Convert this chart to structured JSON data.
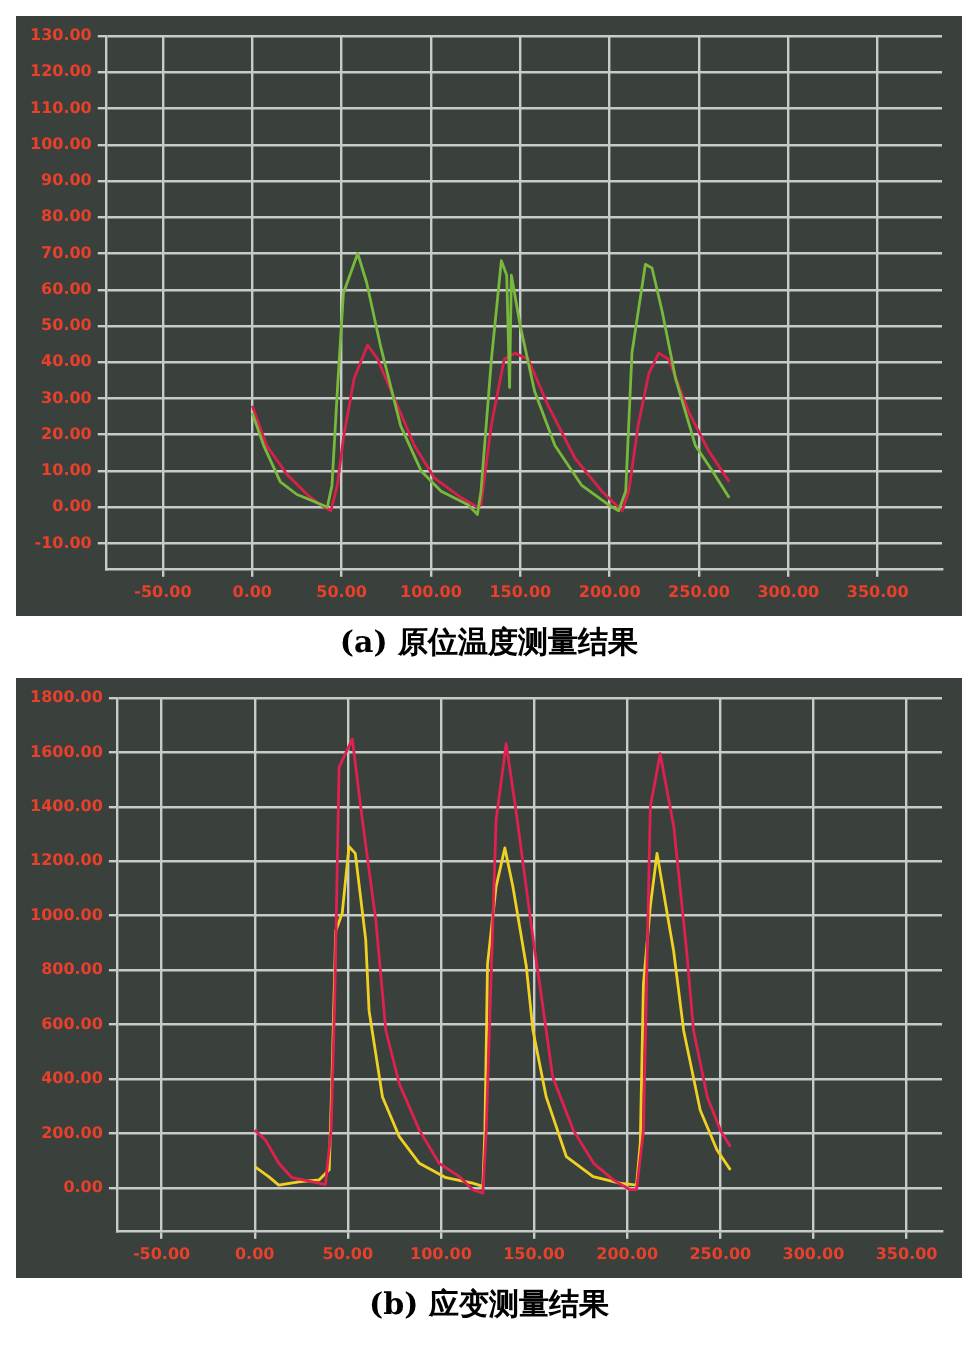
{
  "chart_data": [
    {
      "type": "line",
      "title": "(a) 原位温度测量结果",
      "xlim": [
        -82,
        386
      ],
      "ylim": [
        -17,
        130
      ],
      "xticks": [
        {
          "value": -50,
          "label": "-50.00"
        },
        {
          "value": 0,
          "label": "0.00"
        },
        {
          "value": 50,
          "label": "50.00"
        },
        {
          "value": 100,
          "label": "100.00"
        },
        {
          "value": 150,
          "label": "150.00"
        },
        {
          "value": 200,
          "label": "200.00"
        },
        {
          "value": 250,
          "label": "250.00"
        },
        {
          "value": 300,
          "label": "300.00"
        },
        {
          "value": 350,
          "label": "350.00"
        }
      ],
      "yticks": [
        {
          "value": -10,
          "label": "-10.00"
        },
        {
          "value": 0,
          "label": "0.00"
        },
        {
          "value": 10,
          "label": "10.00"
        },
        {
          "value": 20,
          "label": "20.00"
        },
        {
          "value": 30,
          "label": "30.00"
        },
        {
          "value": 40,
          "label": "40.00"
        },
        {
          "value": 50,
          "label": "50.00"
        },
        {
          "value": 60,
          "label": "60.00"
        },
        {
          "value": 70,
          "label": "70.00"
        },
        {
          "value": 80,
          "label": "80.00"
        },
        {
          "value": 90,
          "label": "90.00"
        },
        {
          "value": 100,
          "label": "100.00"
        },
        {
          "value": 110,
          "label": "110.00"
        },
        {
          "value": 120,
          "label": "120.00"
        },
        {
          "value": 130,
          "label": "130.00"
        }
      ],
      "grid": true,
      "legend": false,
      "series": [
        {
          "color": "#78b83a",
          "x": [
            0,
            6.4,
            15.7,
            25,
            34.5,
            42,
            44.6,
            47.6,
            51,
            59,
            64,
            72,
            83,
            94.5,
            105.7,
            120.7,
            126,
            128,
            133.8,
            139.4,
            142.4,
            144,
            145,
            150,
            158,
            169.4,
            184.4,
            199.3,
            205,
            209,
            212.5,
            220,
            223.7,
            229.4,
            236.9,
            248,
            257.5,
            266.9
          ],
          "values": [
            26,
            17,
            7,
            3.5,
            1.6,
            0,
            6,
            32,
            59,
            70,
            62,
            44,
            22.5,
            10,
            4.4,
            0.7,
            -2,
            4.4,
            40.6,
            68,
            64,
            33,
            64,
            50,
            32,
            17,
            6,
            0.7,
            -1,
            4.4,
            42.6,
            67,
            66,
            54,
            35.5,
            17,
            10,
            2.6
          ]
        },
        {
          "color": "#d8204a",
          "x": [
            0,
            8,
            19.5,
            30.7,
            38,
            44,
            47.6,
            51,
            57,
            64.5,
            70,
            79.5,
            90.7,
            102,
            117,
            126,
            128,
            133.8,
            141,
            147,
            154.4,
            165.6,
            180.6,
            195.6,
            207,
            210.7,
            216,
            222,
            227.5,
            233,
            244.5,
            255.6,
            266.9
          ],
          "values": [
            28,
            17,
            9,
            3.5,
            0.7,
            -1,
            6,
            19,
            35.5,
            44.7,
            41,
            30,
            17,
            8,
            2.6,
            0,
            0.7,
            22.7,
            40.8,
            42.5,
            40.8,
            28,
            13.5,
            4.4,
            -1,
            4.4,
            22.7,
            37,
            42.5,
            40.8,
            26,
            15.4,
            7
          ]
        }
      ]
    },
    {
      "type": "line",
      "title": "(b) 应变测量结果",
      "xlim": [
        -74,
        369
      ],
      "ylim": [
        -158,
        1800
      ],
      "xticks": [
        {
          "value": -50,
          "label": "-50.00"
        },
        {
          "value": 0,
          "label": "0.00"
        },
        {
          "value": 50,
          "label": "50.00"
        },
        {
          "value": 100,
          "label": "100.00"
        },
        {
          "value": 150,
          "label": "150.00"
        },
        {
          "value": 200,
          "label": "200.00"
        },
        {
          "value": 250,
          "label": "250.00"
        },
        {
          "value": 300,
          "label": "300.00"
        },
        {
          "value": 350,
          "label": "350.00"
        }
      ],
      "yticks": [
        {
          "value": 0,
          "label": "0.00"
        },
        {
          "value": 200,
          "label": "200.00"
        },
        {
          "value": 400,
          "label": "400.00"
        },
        {
          "value": 600,
          "label": "600.00"
        },
        {
          "value": 800,
          "label": "800.00"
        },
        {
          "value": 1000,
          "label": "1000.00"
        },
        {
          "value": 1200,
          "label": "1200.00"
        },
        {
          "value": 1400,
          "label": "1400.00"
        },
        {
          "value": 1600,
          "label": "1600.00"
        },
        {
          "value": 1800,
          "label": "1800.00"
        }
      ],
      "grid": true,
      "legend": false,
      "series": [
        {
          "color": "#e02050",
          "x": [
            0,
            5.7,
            12.9,
            20,
            31,
            38,
            41,
            43,
            45.3,
            52.4,
            57.8,
            65,
            70.4,
            77.6,
            88.4,
            99,
            110,
            117,
            122.5,
            124.3,
            129.6,
            135,
            140.5,
            149.5,
            153,
            160,
            171,
            182,
            192.5,
            201.5,
            205,
            208.7,
            212.4,
            217.7,
            225,
            232,
            235.6,
            243,
            250,
            255.4
          ],
          "values": [
            212,
            176,
            90,
            37,
            22,
            12,
            212,
            700,
            1546,
            1649,
            1351,
            985,
            578,
            383,
            212,
            90,
            41,
            -7,
            -20,
            212,
            1351,
            1632,
            1376,
            912,
            749,
            407,
            212,
            90,
            29,
            -7,
            -7,
            212,
            1400,
            1595,
            1327,
            863,
            578,
            334,
            212,
            151
          ]
        },
        {
          "color": "#f0d020",
          "x": [
            0,
            7.5,
            12.9,
            23.7,
            34.5,
            40,
            41.7,
            43.5,
            47,
            50.6,
            54,
            59.6,
            61.4,
            68.6,
            77.6,
            88.4,
            102.7,
            117,
            122.5,
            123.6,
            125,
            129.6,
            134.3,
            138.6,
            145.8,
            149.4,
            156.5,
            167.3,
            181.7,
            196,
            205,
            207,
            208.7,
            212.4,
            216,
            221.4,
            224.9,
            230.3,
            239.2,
            248.2,
            255.4
          ],
          "values": [
            78,
            41,
            10,
            22,
            29,
            66,
            456,
            944,
            1010,
            1254,
            1229,
            912,
            651,
            334,
            188,
            90,
            37,
            17,
            5,
            212,
            822,
            1107,
            1249,
            1107,
            815,
            578,
            334,
            115,
            41,
            17,
            10,
            163,
            749,
            1034,
            1229,
            1010,
            871,
            578,
            285,
            139,
            66
          ]
        }
      ]
    }
  ]
}
